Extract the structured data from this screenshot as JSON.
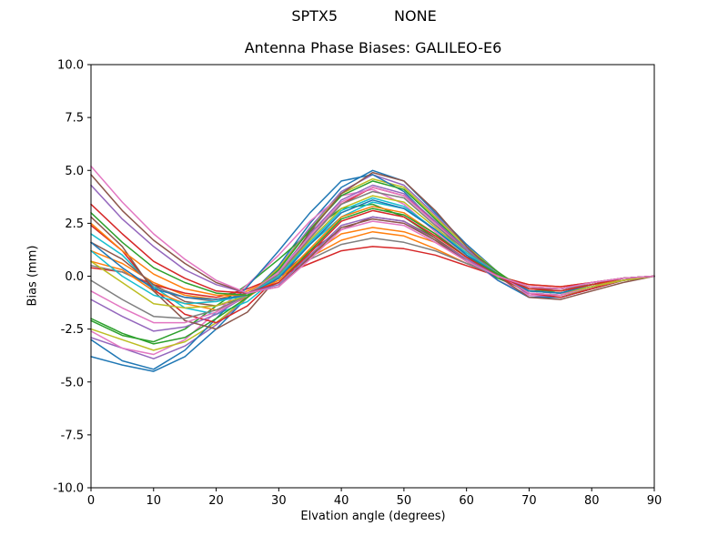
{
  "figure": {
    "suptitle_left": "SPTX5",
    "suptitle_right": "NONE"
  },
  "chart_data": {
    "type": "line",
    "title": "Antenna Phase Biases: GALILEO-E6",
    "xlabel": "Elvation angle (degrees)",
    "ylabel": "Bias (mm)",
    "xlim": [
      0,
      90
    ],
    "ylim": [
      -10,
      10
    ],
    "grid": false,
    "legend": false,
    "xticks": {
      "values": [
        0,
        10,
        20,
        30,
        40,
        50,
        60,
        70,
        80,
        90
      ],
      "labels": [
        "0",
        "10",
        "20",
        "30",
        "40",
        "50",
        "60",
        "70",
        "80",
        "90"
      ]
    },
    "yticks": {
      "values": [
        -10,
        -7.5,
        -5,
        -2.5,
        0,
        2.5,
        5,
        7.5,
        10
      ],
      "labels": [
        "-10.0",
        "-7.5",
        "-5.0",
        "-2.5",
        "0.0",
        "2.5",
        "5.0",
        "7.5",
        "10.0"
      ]
    },
    "palette": [
      "#1f77b4",
      "#ff7f0e",
      "#2ca02c",
      "#d62728",
      "#9467bd",
      "#8c564b",
      "#e377c2",
      "#7f7f7f",
      "#bcbd22",
      "#17becf"
    ],
    "x": [
      0,
      5,
      10,
      15,
      20,
      25,
      30,
      35,
      40,
      45,
      50,
      55,
      60,
      65,
      70,
      75,
      80,
      85,
      90
    ],
    "series": [
      [
        -3.8,
        -4.2,
        -4.5,
        -3.8,
        -2.5,
        -1.0,
        0.5,
        2.5,
        4.2,
        5.0,
        4.5,
        3.0,
        1.5,
        0.2,
        -0.9,
        -1.0,
        -0.6,
        -0.2,
        0.0
      ],
      [
        1.2,
        0.6,
        -0.3,
        -0.9,
        -1.1,
        -0.7,
        0.0,
        0.9,
        1.7,
        2.1,
        1.9,
        1.3,
        0.6,
        0.0,
        -0.4,
        -0.5,
        -0.3,
        -0.1,
        0.0
      ],
      [
        -2.1,
        -2.8,
        -3.1,
        -2.5,
        -1.4,
        -0.4,
        0.8,
        2.1,
        3.2,
        3.4,
        2.8,
        1.8,
        0.7,
        -0.1,
        -0.7,
        -0.7,
        -0.4,
        -0.1,
        0.0
      ],
      [
        0.4,
        0.2,
        -0.4,
        -0.8,
        -1.0,
        -0.6,
        0.0,
        0.6,
        1.2,
        1.4,
        1.3,
        1.0,
        0.5,
        0.0,
        -0.4,
        -0.5,
        -0.3,
        -0.1,
        0.0
      ],
      [
        -2.9,
        -3.4,
        -3.9,
        -3.3,
        -2.3,
        -1.0,
        0.4,
        2.3,
        4.0,
        4.8,
        4.3,
        2.9,
        1.4,
        0.2,
        -0.9,
        -1.0,
        -0.6,
        -0.2,
        0.0
      ],
      [
        1.6,
        0.8,
        -0.4,
        -1.2,
        -1.4,
        -1.0,
        0.0,
        1.2,
        2.2,
        2.8,
        2.6,
        1.8,
        0.8,
        0.0,
        -0.6,
        -0.6,
        -0.4,
        -0.2,
        0.0
      ],
      [
        -2.6,
        -3.4,
        -3.7,
        -3.0,
        -1.7,
        -0.4,
        1.0,
        2.6,
        3.8,
        4.1,
        3.4,
        2.1,
        0.9,
        -0.2,
        -0.9,
        -0.9,
        -0.5,
        -0.2,
        0.0
      ],
      [
        0.5,
        0.2,
        -0.5,
        -1.0,
        -1.2,
        -0.8,
        0.0,
        0.8,
        1.5,
        1.8,
        1.6,
        1.2,
        0.6,
        0.0,
        -0.5,
        -0.6,
        -0.4,
        -0.1,
        0.0
      ],
      [
        -2.5,
        -3.0,
        -3.5,
        -3.1,
        -2.2,
        -1.0,
        0.4,
        2.2,
        3.9,
        4.6,
        4.2,
        2.8,
        1.4,
        0.2,
        -0.8,
        -0.9,
        -0.6,
        -0.2,
        0.0
      ],
      [
        2.0,
        1.0,
        -0.5,
        -1.5,
        -1.8,
        -1.2,
        0.0,
        1.5,
        2.8,
        3.5,
        3.2,
        2.2,
        1.0,
        0.0,
        -0.7,
        -0.8,
        -0.5,
        -0.2,
        0.0
      ],
      [
        -3.0,
        -4.0,
        -4.4,
        -3.5,
        -2.0,
        -0.5,
        1.2,
        3.0,
        4.5,
        4.8,
        4.0,
        2.5,
        1.0,
        -0.2,
        -1.0,
        -1.0,
        -0.6,
        -0.2,
        0.0
      ],
      [
        0.7,
        0.3,
        -0.7,
        -1.3,
        -1.6,
        -1.0,
        0.0,
        1.0,
        2.0,
        2.3,
        2.1,
        1.6,
        0.8,
        0.0,
        -0.7,
        -0.8,
        -0.5,
        -0.1,
        0.0
      ],
      [
        -2.0,
        -2.7,
        -3.2,
        -2.9,
        -2.0,
        -1.0,
        0.3,
        2.2,
        3.8,
        4.5,
        4.1,
        2.7,
        1.3,
        0.2,
        -0.8,
        -0.9,
        -0.5,
        -0.2,
        0.0
      ],
      [
        2.4,
        1.2,
        -0.6,
        -1.8,
        -2.2,
        -1.4,
        0.0,
        1.8,
        3.4,
        4.2,
        3.8,
        2.6,
        1.2,
        0.0,
        -0.8,
        -1.0,
        -0.6,
        -0.2,
        0.0
      ],
      [
        -1.1,
        -1.9,
        -2.6,
        -2.4,
        -1.8,
        -0.9,
        0.2,
        2.0,
        3.6,
        4.3,
        3.9,
        2.6,
        1.3,
        0.1,
        -0.8,
        -0.9,
        -0.5,
        -0.2,
        0.0
      ],
      [
        2.8,
        1.4,
        -0.7,
        -2.1,
        -2.5,
        -1.7,
        0.0,
        2.1,
        3.9,
        4.9,
        4.5,
        3.1,
        1.4,
        0.0,
        -1.0,
        -1.1,
        -0.7,
        -0.3,
        0.0
      ],
      [
        -0.7,
        -1.5,
        -2.2,
        -2.2,
        -1.7,
        -0.9,
        0.2,
        1.9,
        3.5,
        4.2,
        3.8,
        2.5,
        1.2,
        0.1,
        -0.8,
        -0.9,
        -0.5,
        -0.2,
        0.0
      ],
      [
        -0.2,
        -1.1,
        -1.9,
        -2.0,
        -1.6,
        -0.9,
        0.1,
        1.8,
        3.4,
        4.0,
        3.7,
        2.4,
        1.2,
        0.1,
        -0.7,
        -0.8,
        -0.5,
        -0.2,
        0.0
      ],
      [
        0.7,
        -0.3,
        -1.3,
        -1.5,
        -1.4,
        -0.9,
        0.0,
        1.7,
        3.2,
        3.8,
        3.5,
        2.3,
        1.1,
        0.1,
        -0.7,
        -0.8,
        -0.5,
        -0.2,
        0.0
      ],
      [
        1.2,
        0.0,
        -0.9,
        -1.3,
        -1.2,
        -0.9,
        0.0,
        1.6,
        3.1,
        3.7,
        3.3,
        2.2,
        1.1,
        0.1,
        -0.7,
        -0.8,
        -0.4,
        -0.1,
        0.0
      ],
      [
        1.6,
        0.4,
        -0.6,
        -1.0,
        -1.1,
        -0.9,
        -0.1,
        1.5,
        3.0,
        3.6,
        3.2,
        2.2,
        1.0,
        0.1,
        -0.7,
        -0.8,
        -0.4,
        -0.1,
        0.0
      ],
      [
        2.5,
        1.2,
        0.1,
        -0.6,
        -0.9,
        -0.9,
        -0.2,
        1.3,
        2.8,
        3.3,
        3.0,
        2.0,
        0.9,
        0.1,
        -0.6,
        -0.7,
        -0.4,
        -0.1,
        0.0
      ],
      [
        3.0,
        1.6,
        0.4,
        -0.3,
        -0.8,
        -0.9,
        -0.3,
        1.2,
        2.7,
        3.2,
        2.9,
        2.0,
        0.9,
        0.1,
        -0.6,
        -0.7,
        -0.4,
        -0.1,
        0.0
      ],
      [
        3.4,
        2.0,
        0.7,
        -0.1,
        -0.7,
        -0.8,
        -0.3,
        1.1,
        2.6,
        3.1,
        2.8,
        1.9,
        0.9,
        0.0,
        -0.6,
        -0.7,
        -0.4,
        -0.1,
        0.0
      ],
      [
        4.3,
        2.7,
        1.4,
        0.3,
        -0.4,
        -0.8,
        -0.4,
        1.0,
        2.4,
        2.8,
        2.6,
        1.7,
        0.8,
        0.0,
        -0.5,
        -0.6,
        -0.3,
        -0.1,
        0.0
      ],
      [
        4.8,
        3.1,
        1.7,
        0.6,
        -0.3,
        -0.8,
        -0.5,
        0.9,
        2.3,
        2.7,
        2.5,
        1.7,
        0.7,
        0.0,
        -0.5,
        -0.6,
        -0.3,
        -0.1,
        0.0
      ],
      [
        5.2,
        3.5,
        2.0,
        0.8,
        -0.2,
        -0.8,
        -0.5,
        0.8,
        2.2,
        2.6,
        2.4,
        1.6,
        0.7,
        0.0,
        -0.5,
        -0.6,
        -0.3,
        -0.1,
        0.0
      ]
    ]
  }
}
